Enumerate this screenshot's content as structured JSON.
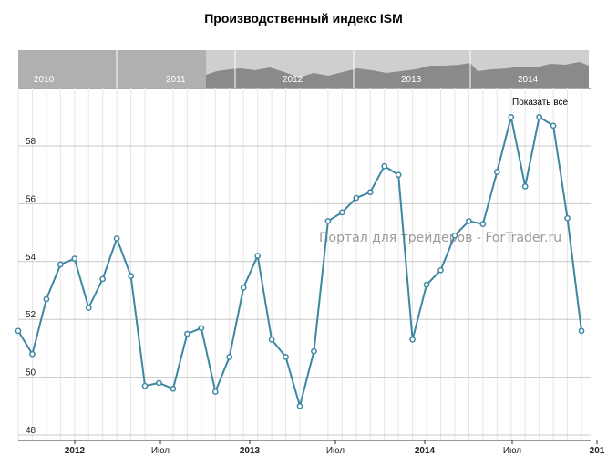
{
  "chart_data": {
    "type": "line",
    "title": "Производственный индекс ISM",
    "x": [
      "2012-01",
      "2012-02",
      "2012-03",
      "2012-04",
      "2012-05",
      "2012-06",
      "2012-07",
      "2012-08",
      "2012-09",
      "2012-10",
      "2012-11",
      "2012-12",
      "2013-01",
      "2013-02",
      "2013-03",
      "2013-04",
      "2013-05",
      "2013-06",
      "2013-07",
      "2013-08",
      "2013-09",
      "2013-10",
      "2013-11",
      "2013-12",
      "2014-01",
      "2014-02",
      "2014-03",
      "2014-04",
      "2014-05",
      "2014-06",
      "2014-07",
      "2014-08",
      "2014-09",
      "2014-10",
      "2014-11",
      "2014-12"
    ],
    "series": [
      {
        "name": "",
        "values": [
          52.4,
          53.4,
          54.8,
          53.5,
          49.7,
          49.8,
          49.6,
          51.5,
          51.7,
          49.5,
          50.7,
          53.1,
          54.2,
          51.3,
          50.7,
          49.0,
          50.9,
          55.4,
          55.7,
          56.2,
          56.4,
          57.3,
          57.0,
          51.3,
          53.2,
          53.7,
          54.9,
          55.4,
          55.3,
          57.1,
          59.0,
          56.6,
          59.0,
          58.7,
          55.5,
          51.6
        ]
      }
    ],
    "visible_start_value": 51.6,
    "visible_pre_start_values": [
      50.8,
      52.7,
      53.9,
      54.1
    ],
    "ylim": [
      48,
      60
    ],
    "y_ticks": [
      "48",
      "50",
      "52",
      "54",
      "56",
      "58"
    ],
    "x_tick_labels": [
      "2012",
      "Июл",
      "2013",
      "Июл",
      "2014",
      "Июл",
      "201"
    ],
    "grid": true,
    "line_color": "#3d87a3",
    "marker_fill": "#ffffff",
    "navigator": {
      "years": [
        "2010",
        "2011",
        "2012",
        "2013",
        "2014"
      ]
    },
    "show_all_button": "Показать все",
    "watermark": "Портал для трейдеров - ForTrader.ru"
  }
}
